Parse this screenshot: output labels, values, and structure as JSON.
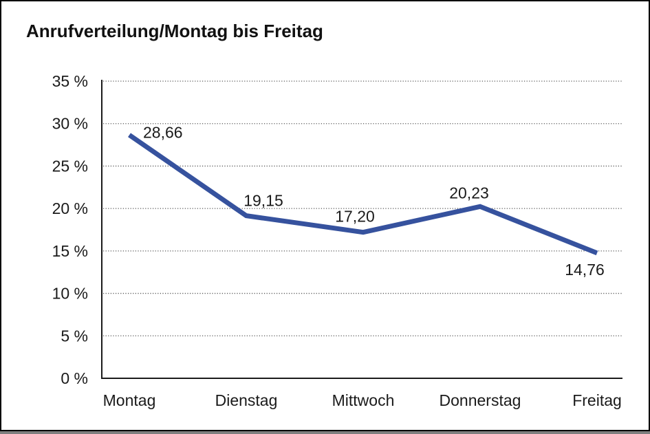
{
  "window": {
    "background": "#ffffff",
    "frame_border_color": "#000000",
    "bottom_shadow_color": "#7f7f7f"
  },
  "chart_data": {
    "type": "line",
    "title": "Anrufverteilung/Montag bis Freitag",
    "categories": [
      "Montag",
      "Dienstag",
      "Mittwoch",
      "Donnerstag",
      "Freitag"
    ],
    "series": [
      {
        "name": "Anrufverteilung",
        "values": [
          28.66,
          19.15,
          17.2,
          20.23,
          14.76
        ],
        "color": "#36529E"
      }
    ],
    "point_labels": [
      "28,66",
      "19,15",
      "17,20",
      "20,23",
      "14,76"
    ],
    "xlabel": "",
    "ylabel": "",
    "ylim": [
      0,
      35
    ],
    "y_tick_step": 5,
    "y_ticks": [
      0,
      5,
      10,
      15,
      20,
      25,
      30,
      35
    ],
    "y_tick_labels": [
      "0 %",
      "5 %",
      "10 %",
      "15 %",
      "20 %",
      "25 %",
      "30 %",
      "35 %"
    ],
    "grid": "horizontal-dotted",
    "legend_position": "none",
    "axis_color": "#1a1a1a",
    "grid_color": "#555555",
    "text_color": "#1a1a1a"
  }
}
